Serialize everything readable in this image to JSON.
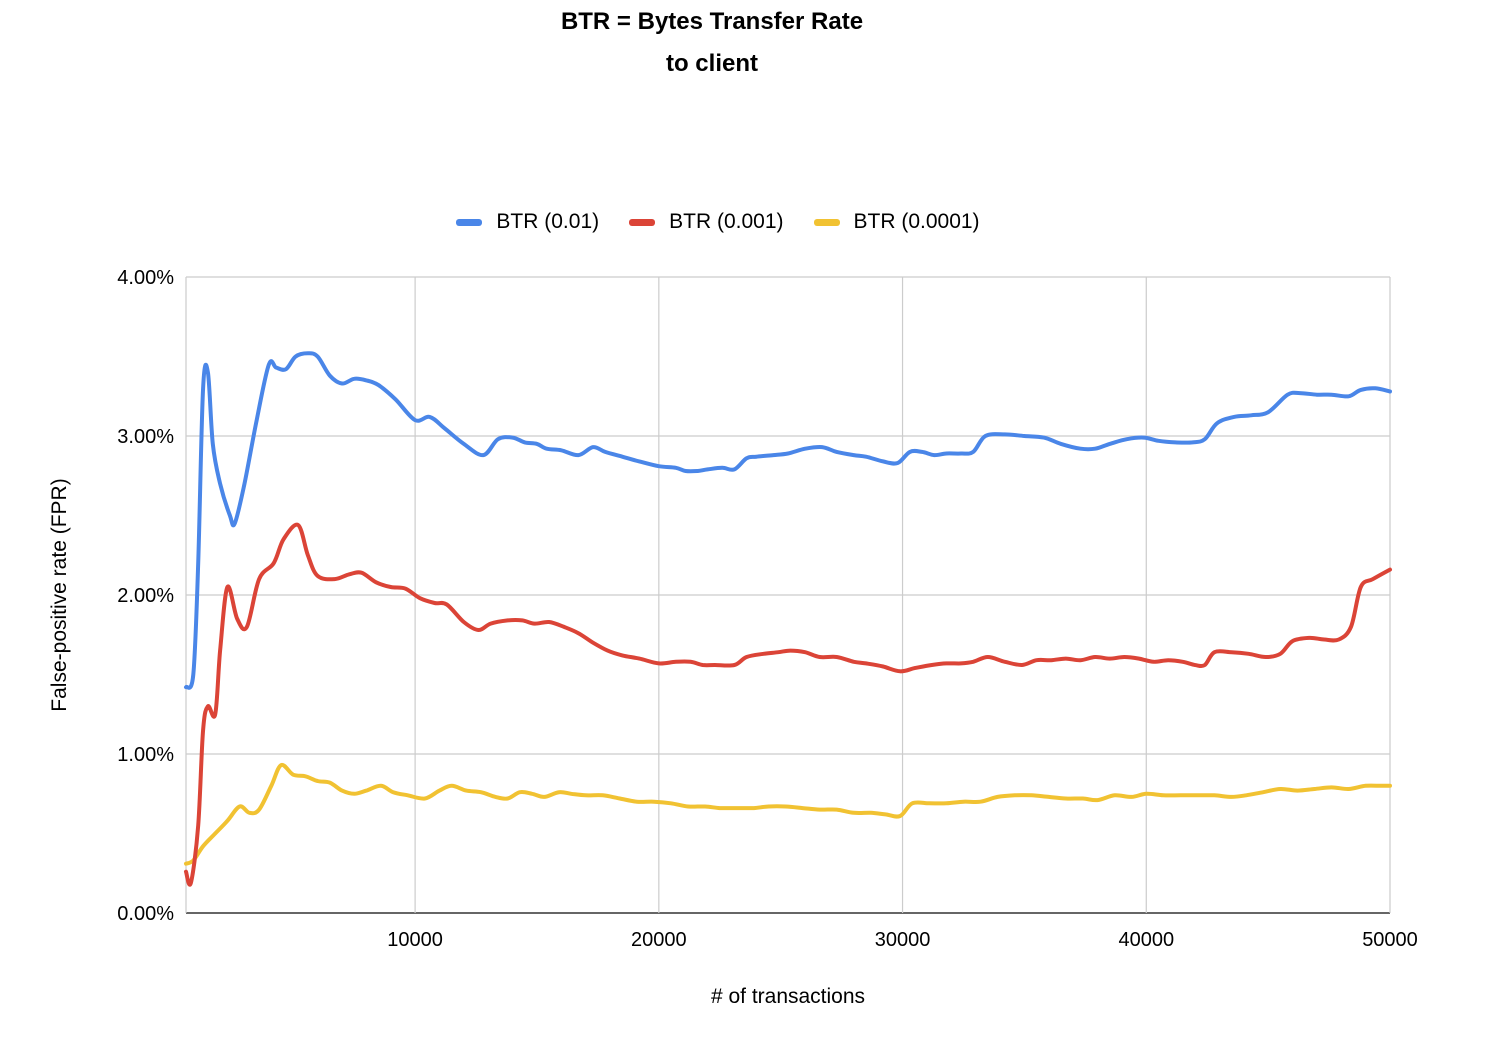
{
  "chart_data": {
    "type": "line",
    "title_line1": "BTR = Bytes Transfer Rate",
    "title_line2": "to client",
    "xlabel": "# of transactions",
    "ylabel": "False-positive rate (FPR)",
    "xlim": [
      600,
      50000
    ],
    "ylim": [
      0,
      0.04
    ],
    "xticks": [
      10000,
      20000,
      30000,
      40000,
      50000
    ],
    "xtick_labels": [
      "10000",
      "20000",
      "30000",
      "40000",
      "50000"
    ],
    "yticks": [
      0,
      0.01,
      0.02,
      0.03,
      0.04
    ],
    "ytick_labels": [
      "0.00%",
      "1.00%",
      "2.00%",
      "3.00%",
      "4.00%"
    ],
    "grid": true,
    "legend_position": "top",
    "series": [
      {
        "name": "BTR (0.01)",
        "color": "#4a86e8",
        "points": [
          [
            600,
            1.42
          ],
          [
            900,
            1.5
          ],
          [
            1100,
            2.2
          ],
          [
            1300,
            3.3
          ],
          [
            1500,
            3.4
          ],
          [
            1700,
            2.95
          ],
          [
            2000,
            2.7
          ],
          [
            2400,
            2.5
          ],
          [
            2600,
            2.45
          ],
          [
            3000,
            2.7
          ],
          [
            3500,
            3.1
          ],
          [
            4000,
            3.45
          ],
          [
            4300,
            3.43
          ],
          [
            4700,
            3.42
          ],
          [
            5100,
            3.5
          ],
          [
            5600,
            3.52
          ],
          [
            6000,
            3.5
          ],
          [
            6500,
            3.38
          ],
          [
            7000,
            3.33
          ],
          [
            7500,
            3.36
          ],
          [
            8000,
            3.35
          ],
          [
            8500,
            3.32
          ],
          [
            9200,
            3.23
          ],
          [
            10000,
            3.1
          ],
          [
            10600,
            3.12
          ],
          [
            11200,
            3.05
          ],
          [
            12000,
            2.95
          ],
          [
            12800,
            2.88
          ],
          [
            13400,
            2.98
          ],
          [
            14000,
            2.99
          ],
          [
            14500,
            2.96
          ],
          [
            15000,
            2.95
          ],
          [
            15400,
            2.92
          ],
          [
            16000,
            2.91
          ],
          [
            16700,
            2.88
          ],
          [
            17300,
            2.93
          ],
          [
            17800,
            2.9
          ],
          [
            18500,
            2.87
          ],
          [
            19200,
            2.84
          ],
          [
            20000,
            2.81
          ],
          [
            20700,
            2.8
          ],
          [
            21100,
            2.78
          ],
          [
            21600,
            2.78
          ],
          [
            22000,
            2.79
          ],
          [
            22600,
            2.8
          ],
          [
            23100,
            2.79
          ],
          [
            23600,
            2.86
          ],
          [
            24000,
            2.87
          ],
          [
            24700,
            2.88
          ],
          [
            25300,
            2.89
          ],
          [
            26000,
            2.92
          ],
          [
            26700,
            2.93
          ],
          [
            27300,
            2.9
          ],
          [
            28000,
            2.88
          ],
          [
            28500,
            2.87
          ],
          [
            29200,
            2.84
          ],
          [
            29800,
            2.83
          ],
          [
            30300,
            2.9
          ],
          [
            30800,
            2.9
          ],
          [
            31300,
            2.88
          ],
          [
            31800,
            2.89
          ],
          [
            32400,
            2.89
          ],
          [
            32900,
            2.9
          ],
          [
            33400,
            3.0
          ],
          [
            34200,
            3.01
          ],
          [
            35000,
            3.0
          ],
          [
            35800,
            2.99
          ],
          [
            36500,
            2.95
          ],
          [
            37300,
            2.92
          ],
          [
            37900,
            2.92
          ],
          [
            38500,
            2.95
          ],
          [
            39200,
            2.98
          ],
          [
            39900,
            2.99
          ],
          [
            40500,
            2.97
          ],
          [
            41200,
            2.96
          ],
          [
            41900,
            2.96
          ],
          [
            42400,
            2.98
          ],
          [
            42900,
            3.08
          ],
          [
            43600,
            3.12
          ],
          [
            44300,
            3.13
          ],
          [
            45000,
            3.15
          ],
          [
            45800,
            3.26
          ],
          [
            46300,
            3.27
          ],
          [
            47000,
            3.26
          ],
          [
            47600,
            3.26
          ],
          [
            48300,
            3.25
          ],
          [
            48800,
            3.29
          ],
          [
            49400,
            3.3
          ],
          [
            50000,
            3.28
          ]
        ]
      },
      {
        "name": "BTR (0.001)",
        "color": "#db4437",
        "points": [
          [
            600,
            0.26
          ],
          [
            800,
            0.19
          ],
          [
            1100,
            0.55
          ],
          [
            1300,
            1.15
          ],
          [
            1500,
            1.3
          ],
          [
            1800,
            1.25
          ],
          [
            2000,
            1.65
          ],
          [
            2300,
            2.05
          ],
          [
            2700,
            1.85
          ],
          [
            3100,
            1.8
          ],
          [
            3600,
            2.1
          ],
          [
            4200,
            2.2
          ],
          [
            4600,
            2.35
          ],
          [
            5200,
            2.44
          ],
          [
            5600,
            2.25
          ],
          [
            6000,
            2.12
          ],
          [
            6700,
            2.1
          ],
          [
            7300,
            2.13
          ],
          [
            7800,
            2.14
          ],
          [
            8400,
            2.08
          ],
          [
            9000,
            2.05
          ],
          [
            9600,
            2.04
          ],
          [
            10200,
            1.98
          ],
          [
            10800,
            1.95
          ],
          [
            11300,
            1.94
          ],
          [
            12000,
            1.83
          ],
          [
            12600,
            1.78
          ],
          [
            13100,
            1.82
          ],
          [
            13800,
            1.84
          ],
          [
            14400,
            1.84
          ],
          [
            14900,
            1.82
          ],
          [
            15500,
            1.83
          ],
          [
            16100,
            1.8
          ],
          [
            16700,
            1.76
          ],
          [
            17300,
            1.7
          ],
          [
            17900,
            1.65
          ],
          [
            18500,
            1.62
          ],
          [
            19200,
            1.6
          ],
          [
            20000,
            1.57
          ],
          [
            20700,
            1.58
          ],
          [
            21300,
            1.58
          ],
          [
            21800,
            1.56
          ],
          [
            22300,
            1.56
          ],
          [
            23100,
            1.56
          ],
          [
            23600,
            1.61
          ],
          [
            24300,
            1.63
          ],
          [
            24900,
            1.64
          ],
          [
            25400,
            1.65
          ],
          [
            26000,
            1.64
          ],
          [
            26600,
            1.61
          ],
          [
            27300,
            1.61
          ],
          [
            28000,
            1.58
          ],
          [
            28500,
            1.57
          ],
          [
            29200,
            1.55
          ],
          [
            29900,
            1.52
          ],
          [
            30500,
            1.54
          ],
          [
            31200,
            1.56
          ],
          [
            31800,
            1.57
          ],
          [
            32400,
            1.57
          ],
          [
            32900,
            1.58
          ],
          [
            33500,
            1.61
          ],
          [
            34200,
            1.58
          ],
          [
            34900,
            1.56
          ],
          [
            35500,
            1.59
          ],
          [
            36100,
            1.59
          ],
          [
            36700,
            1.6
          ],
          [
            37300,
            1.59
          ],
          [
            37900,
            1.61
          ],
          [
            38500,
            1.6
          ],
          [
            39100,
            1.61
          ],
          [
            39700,
            1.6
          ],
          [
            40300,
            1.58
          ],
          [
            40900,
            1.59
          ],
          [
            41500,
            1.58
          ],
          [
            42000,
            1.56
          ],
          [
            42400,
            1.56
          ],
          [
            42800,
            1.64
          ],
          [
            43500,
            1.64
          ],
          [
            44200,
            1.63
          ],
          [
            44900,
            1.61
          ],
          [
            45500,
            1.63
          ],
          [
            46000,
            1.71
          ],
          [
            46700,
            1.73
          ],
          [
            47300,
            1.72
          ],
          [
            47900,
            1.72
          ],
          [
            48400,
            1.8
          ],
          [
            48800,
            2.05
          ],
          [
            49300,
            2.1
          ],
          [
            50000,
            2.16
          ]
        ]
      },
      {
        "name": "BTR (0.0001)",
        "color": "#f1c232",
        "points": [
          [
            600,
            0.31
          ],
          [
            900,
            0.33
          ],
          [
            1300,
            0.42
          ],
          [
            1800,
            0.5
          ],
          [
            2300,
            0.58
          ],
          [
            2800,
            0.67
          ],
          [
            3200,
            0.63
          ],
          [
            3600,
            0.65
          ],
          [
            4100,
            0.8
          ],
          [
            4500,
            0.93
          ],
          [
            5000,
            0.87
          ],
          [
            5500,
            0.86
          ],
          [
            6000,
            0.83
          ],
          [
            6500,
            0.82
          ],
          [
            7000,
            0.77
          ],
          [
            7500,
            0.75
          ],
          [
            8000,
            0.77
          ],
          [
            8600,
            0.8
          ],
          [
            9100,
            0.76
          ],
          [
            9700,
            0.74
          ],
          [
            10400,
            0.72
          ],
          [
            11000,
            0.77
          ],
          [
            11500,
            0.8
          ],
          [
            12100,
            0.77
          ],
          [
            12700,
            0.76
          ],
          [
            13300,
            0.73
          ],
          [
            13800,
            0.72
          ],
          [
            14300,
            0.76
          ],
          [
            14800,
            0.75
          ],
          [
            15300,
            0.73
          ],
          [
            15900,
            0.76
          ],
          [
            16400,
            0.75
          ],
          [
            17000,
            0.74
          ],
          [
            17700,
            0.74
          ],
          [
            18400,
            0.72
          ],
          [
            19100,
            0.7
          ],
          [
            19800,
            0.7
          ],
          [
            20500,
            0.69
          ],
          [
            21200,
            0.67
          ],
          [
            21900,
            0.67
          ],
          [
            22500,
            0.66
          ],
          [
            23200,
            0.66
          ],
          [
            23900,
            0.66
          ],
          [
            24500,
            0.67
          ],
          [
            25200,
            0.67
          ],
          [
            25900,
            0.66
          ],
          [
            26600,
            0.65
          ],
          [
            27300,
            0.65
          ],
          [
            28000,
            0.63
          ],
          [
            28700,
            0.63
          ],
          [
            29300,
            0.62
          ],
          [
            29900,
            0.61
          ],
          [
            30400,
            0.69
          ],
          [
            31100,
            0.69
          ],
          [
            31800,
            0.69
          ],
          [
            32500,
            0.7
          ],
          [
            33200,
            0.7
          ],
          [
            33900,
            0.73
          ],
          [
            34600,
            0.74
          ],
          [
            35300,
            0.74
          ],
          [
            36000,
            0.73
          ],
          [
            36700,
            0.72
          ],
          [
            37400,
            0.72
          ],
          [
            38000,
            0.71
          ],
          [
            38700,
            0.74
          ],
          [
            39400,
            0.73
          ],
          [
            40000,
            0.75
          ],
          [
            40700,
            0.74
          ],
          [
            41400,
            0.74
          ],
          [
            42100,
            0.74
          ],
          [
            42800,
            0.74
          ],
          [
            43500,
            0.73
          ],
          [
            44100,
            0.74
          ],
          [
            44800,
            0.76
          ],
          [
            45500,
            0.78
          ],
          [
            46200,
            0.77
          ],
          [
            46900,
            0.78
          ],
          [
            47600,
            0.79
          ],
          [
            48300,
            0.78
          ],
          [
            49000,
            0.8
          ],
          [
            49600,
            0.8
          ],
          [
            50000,
            0.8
          ]
        ]
      }
    ]
  }
}
